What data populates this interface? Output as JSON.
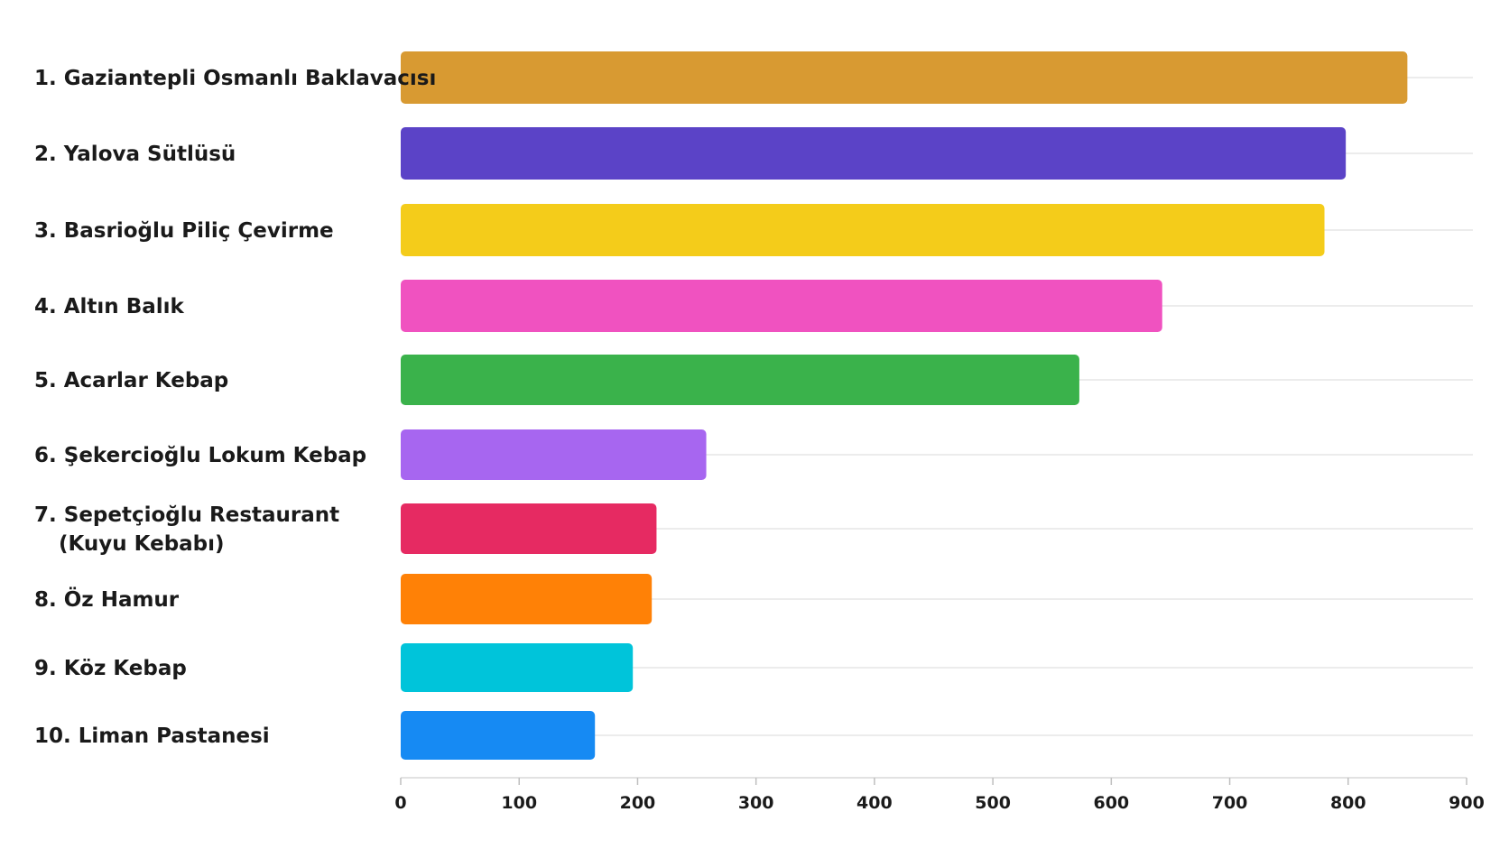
{
  "chart_data": {
    "type": "bar",
    "orientation": "horizontal",
    "categories": [
      "1. Gaziantepli Osmanlı Baklavacısı",
      "2. Yalova Sütlüsü",
      "3. Basrioğlu Piliç Çevirme",
      "4. Altın Balık",
      "5. Acarlar Kebap",
      "6. Şekercioğlu Lokum Kebap",
      "7. Sepetçioğlu Restaurant (Kuyu Kebabı)",
      "8. Öz Hamur",
      "9. Köz Kebap",
      "10. Liman Pastanesi"
    ],
    "category_lines": [
      [
        "1. Gaziantepli Osmanlı Baklavacısı"
      ],
      [
        "2. Yalova Sütlüsü"
      ],
      [
        "3. Basrioğlu Piliç Çevirme"
      ],
      [
        "4. Altın Balık"
      ],
      [
        "5. Acarlar Kebap"
      ],
      [
        "6. Şekercioğlu Lokum Kebap"
      ],
      [
        "7. Sepetçioğlu Restaurant",
        "(Kuyu Kebabı)"
      ],
      [
        "8. Öz Hamur"
      ],
      [
        "9. Köz Kebap"
      ],
      [
        "10. Liman Pastanesi"
      ]
    ],
    "values": [
      850,
      798,
      780,
      643,
      573,
      258,
      216,
      212,
      196,
      164
    ],
    "colors": [
      "#D89A32",
      "#5B43C7",
      "#F4CC1A",
      "#F052C0",
      "#3AB24B",
      "#A766F0",
      "#E62A62",
      "#FF8106",
      "#00C4DA",
      "#168AF3"
    ],
    "xlim": [
      0,
      900
    ],
    "xticks": [
      "0",
      "100",
      "200",
      "300",
      "400",
      "500",
      "600",
      "700",
      "800",
      "900"
    ],
    "title": "",
    "xlabel": "",
    "ylabel": "",
    "grid": true,
    "legend": "none"
  }
}
